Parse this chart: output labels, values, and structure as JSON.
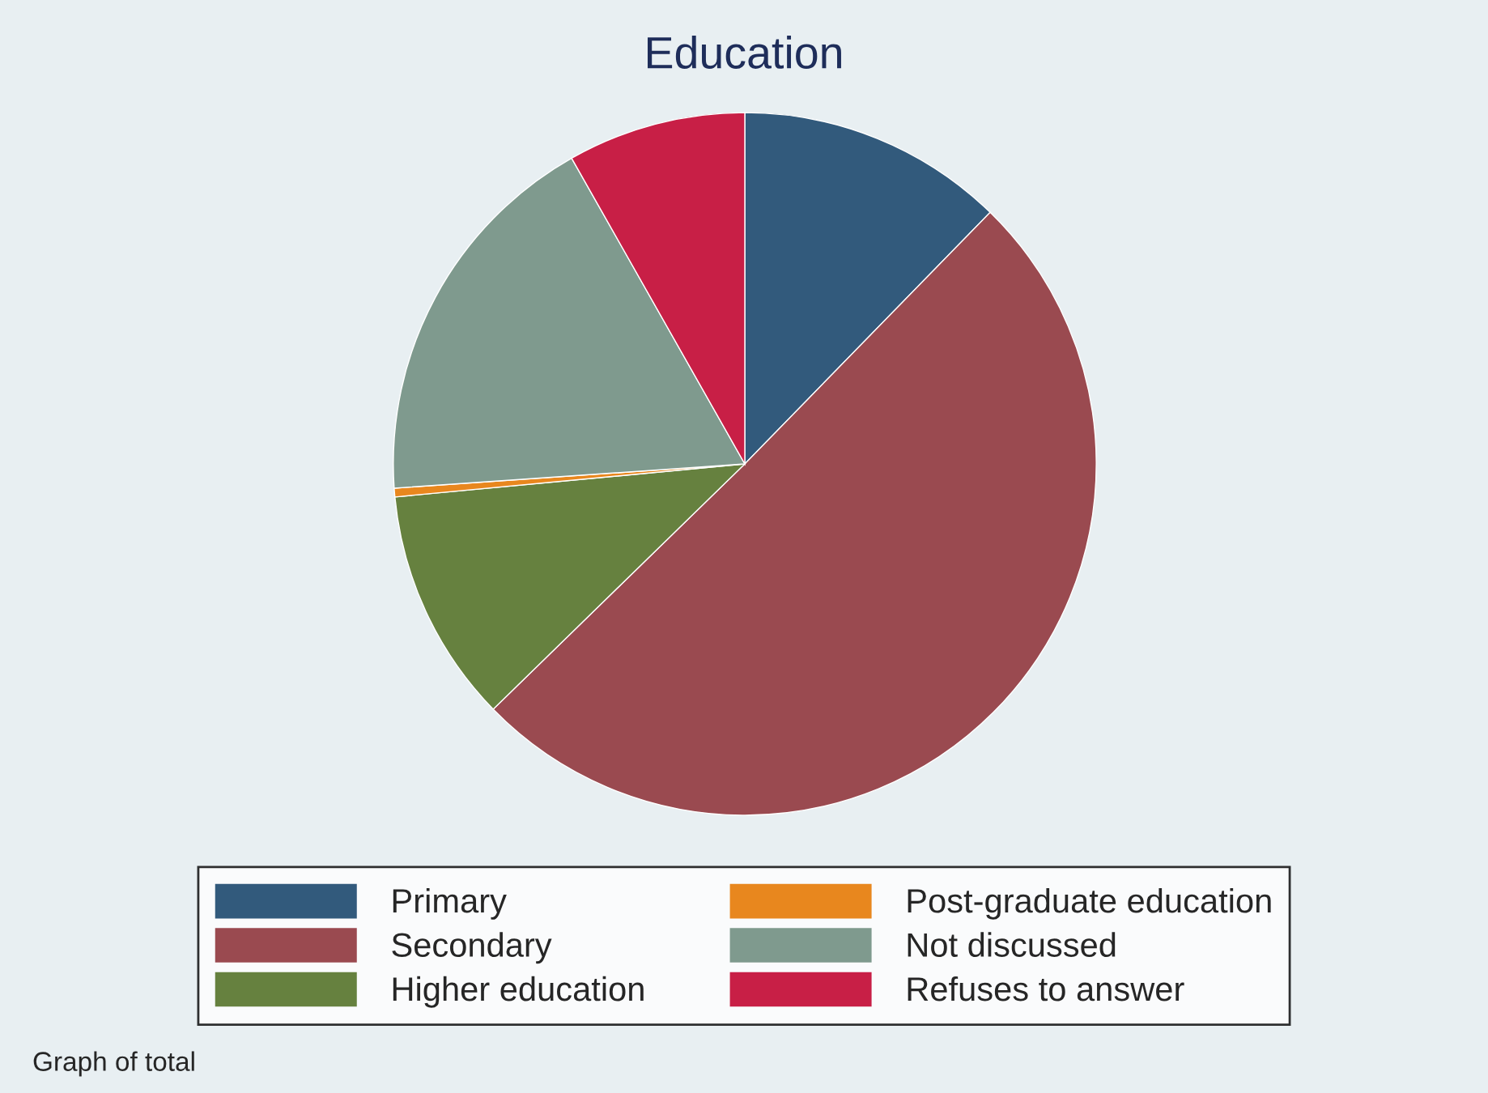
{
  "chart_data": {
    "type": "pie",
    "title": "Education",
    "categories": [
      "Primary",
      "Secondary",
      "Higher education",
      "Post-graduate education",
      "Not discussed",
      "Refuses to answer"
    ],
    "values": [
      12.3,
      50.4,
      10.8,
      0.4,
      17.9,
      8.2
    ],
    "colors": [
      "#325a7c",
      "#9a4a50",
      "#66813f",
      "#e8871e",
      "#7f9a8e",
      "#c81f46"
    ],
    "legend": "bottom",
    "annotations": [
      "Graph of total"
    ]
  }
}
